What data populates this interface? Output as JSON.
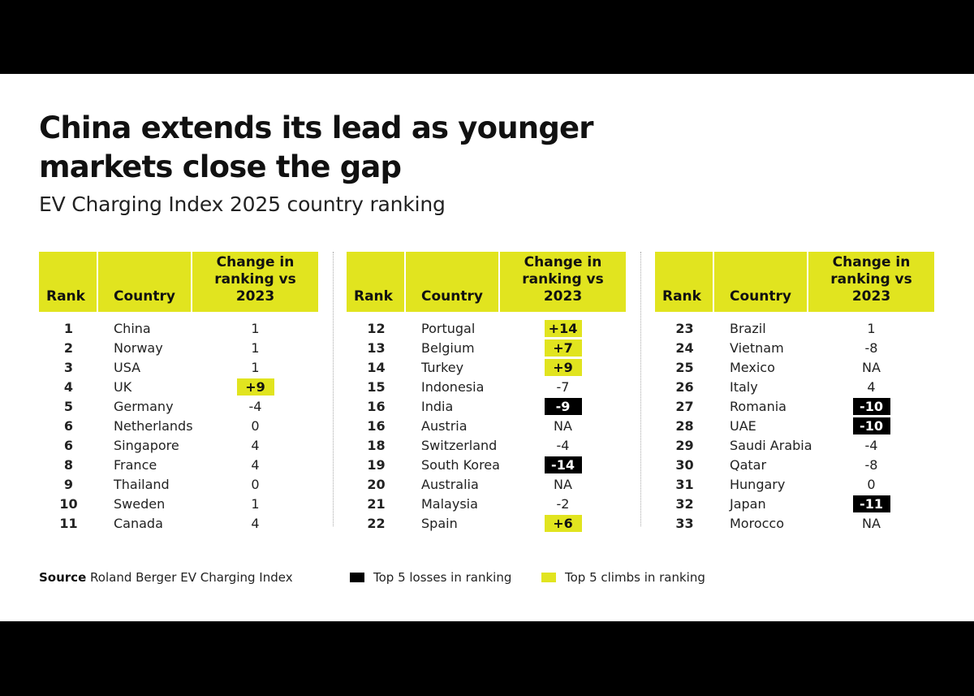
{
  "title": "China extends its lead as younger markets close the gap",
  "subtitle": "EV Charging Index 2025 country ranking",
  "headers": {
    "rank": "Rank",
    "country": "Country",
    "change": "Change in ranking vs 2023"
  },
  "colors": {
    "climb": "#e1e41f",
    "loss": "#000000"
  },
  "tables": [
    {
      "rows": [
        {
          "rank": "1",
          "country": "China",
          "change": "1",
          "hl": ""
        },
        {
          "rank": "2",
          "country": "Norway",
          "change": "1",
          "hl": ""
        },
        {
          "rank": "3",
          "country": "USA",
          "change": "1",
          "hl": ""
        },
        {
          "rank": "4",
          "country": "UK",
          "change": "+9",
          "hl": "climb"
        },
        {
          "rank": "5",
          "country": "Germany",
          "change": "-4",
          "hl": ""
        },
        {
          "rank": "6",
          "country": "Netherlands",
          "change": "0",
          "hl": ""
        },
        {
          "rank": "6",
          "country": "Singapore",
          "change": "4",
          "hl": ""
        },
        {
          "rank": "8",
          "country": "France",
          "change": "4",
          "hl": ""
        },
        {
          "rank": "9",
          "country": "Thailand",
          "change": "0",
          "hl": ""
        },
        {
          "rank": "10",
          "country": "Sweden",
          "change": "1",
          "hl": ""
        },
        {
          "rank": "11",
          "country": "Canada",
          "change": "4",
          "hl": ""
        }
      ]
    },
    {
      "rows": [
        {
          "rank": "12",
          "country": "Portugal",
          "change": "+14",
          "hl": "climb"
        },
        {
          "rank": "13",
          "country": "Belgium",
          "change": "+7",
          "hl": "climb"
        },
        {
          "rank": "14",
          "country": "Turkey",
          "change": "+9",
          "hl": "climb"
        },
        {
          "rank": "15",
          "country": "Indonesia",
          "change": "-7",
          "hl": ""
        },
        {
          "rank": "16",
          "country": "India",
          "change": "-9",
          "hl": "loss"
        },
        {
          "rank": "16",
          "country": "Austria",
          "change": "NA",
          "hl": ""
        },
        {
          "rank": "18",
          "country": "Switzerland",
          "change": "-4",
          "hl": ""
        },
        {
          "rank": "19",
          "country": "South Korea",
          "change": "-14",
          "hl": "loss"
        },
        {
          "rank": "20",
          "country": "Australia",
          "change": "NA",
          "hl": ""
        },
        {
          "rank": "21",
          "country": "Malaysia",
          "change": "-2",
          "hl": ""
        },
        {
          "rank": "22",
          "country": "Spain",
          "change": "+6",
          "hl": "climb"
        }
      ]
    },
    {
      "rows": [
        {
          "rank": "23",
          "country": "Brazil",
          "change": "1",
          "hl": ""
        },
        {
          "rank": "24",
          "country": "Vietnam",
          "change": "-8",
          "hl": ""
        },
        {
          "rank": "25",
          "country": "Mexico",
          "change": "NA",
          "hl": ""
        },
        {
          "rank": "26",
          "country": "Italy",
          "change": "4",
          "hl": ""
        },
        {
          "rank": "27",
          "country": "Romania",
          "change": "-10",
          "hl": "loss"
        },
        {
          "rank": "28",
          "country": "UAE",
          "change": "-10",
          "hl": "loss"
        },
        {
          "rank": "29",
          "country": "Saudi Arabia",
          "change": "-4",
          "hl": ""
        },
        {
          "rank": "30",
          "country": "Qatar",
          "change": "-8",
          "hl": ""
        },
        {
          "rank": "31",
          "country": "Hungary",
          "change": "0",
          "hl": ""
        },
        {
          "rank": "32",
          "country": "Japan",
          "change": "-11",
          "hl": "loss"
        },
        {
          "rank": "33",
          "country": "Morocco",
          "change": "NA",
          "hl": ""
        }
      ]
    }
  ],
  "footer": {
    "source_label": "Source",
    "source_text": "Roland Berger EV Charging Index",
    "legend_losses": "Top 5 losses in ranking",
    "legend_climbs": "Top 5 climbs in ranking"
  }
}
